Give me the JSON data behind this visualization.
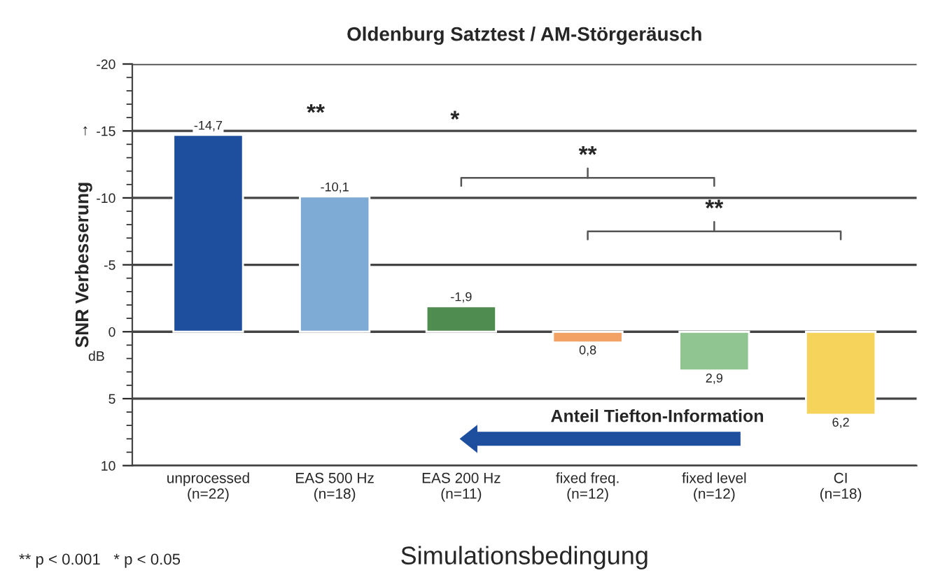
{
  "chart_data": {
    "type": "bar",
    "title": "Oldenburg Satztest / AM-Störgeräusch",
    "xlabel": "Simulationsbedingung",
    "ylabel": "SNR Verbesserung",
    "categories": [
      "unprocessed\n(n=22)",
      "EAS 500 Hz\n(n=18)",
      "EAS 200 Hz\n(n=11)",
      "fixed freq.\n(n=12)",
      "fixed level\n(n=12)",
      "CI\n(n=18)"
    ],
    "values": [
      -14.7,
      -10.1,
      -1.9,
      0.8,
      2.9,
      6.2
    ],
    "value_labels": [
      "-14,7",
      "-10,1",
      "-1,9",
      "0,8",
      "2,9",
      "6,2"
    ],
    "colors": [
      "#1d4f9e",
      "#7eaad6",
      "#4f8c4f",
      "#f2a264",
      "#90c490",
      "#f6d35a"
    ],
    "ylim": [
      10,
      -20
    ],
    "yticks": [
      -20,
      -15,
      -10,
      -5,
      0,
      5,
      10
    ],
    "grid": "y",
    "annotations": [
      "**",
      "*",
      "**",
      "**",
      "Anteil Tiefton-Information",
      "dB",
      "↑",
      "** p < 0.001   * p < 0.05"
    ]
  }
}
